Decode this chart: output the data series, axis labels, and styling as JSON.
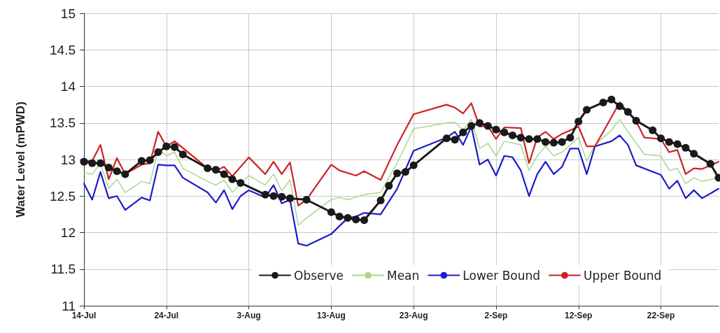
{
  "chart_data": {
    "type": "line",
    "ylabel": "Water Level (mPWD)",
    "xlim": [
      "--07-14",
      "--09-29"
    ],
    "ylim": [
      11,
      15
    ],
    "yticks": [
      11,
      11.5,
      12,
      12.5,
      13,
      13.5,
      14,
      14.5,
      15
    ],
    "xticks": [
      {
        "value": "--07-14",
        "label": "14-Jul"
      },
      {
        "value": "--07-24",
        "label": "24-Jul"
      },
      {
        "value": "--08-03",
        "label": "3-Aug"
      },
      {
        "value": "--08-13",
        "label": "13-Aug"
      },
      {
        "value": "--08-23",
        "label": "23-Aug"
      },
      {
        "value": "--09-02",
        "label": "2-Sep"
      },
      {
        "value": "--09-12",
        "label": "12-Sep"
      },
      {
        "value": "--09-22",
        "label": "22-Sep"
      }
    ],
    "grid": true,
    "legend": "bottom",
    "line_style": "solid",
    "series": [
      {
        "name": "Observe",
        "color": "#1a1a1a",
        "marker": "circle",
        "x": [
          "--07-14",
          "--07-15",
          "--07-16",
          "--07-17",
          "--07-18",
          "--07-19",
          "--07-21",
          "--07-22",
          "--07-23",
          "--07-24",
          "--07-25",
          "--07-26",
          "--07-29",
          "--07-30",
          "--07-31",
          "--08-01",
          "--08-02",
          "--08-05",
          "--08-06",
          "--08-07",
          "--08-08",
          "--08-10",
          "--08-13",
          "--08-14",
          "--08-15",
          "--08-16",
          "--08-17",
          "--08-19",
          "--08-20",
          "--08-21",
          "--08-22",
          "--08-23",
          "--08-27",
          "--08-28",
          "--08-29",
          "--08-30",
          "--08-31",
          "--09-01",
          "--09-02",
          "--09-03",
          "--09-04",
          "--09-05",
          "--09-06",
          "--09-07",
          "--09-08",
          "--09-09",
          "--09-10",
          "--09-11",
          "--09-12",
          "--09-13",
          "--09-15",
          "--09-16",
          "--09-17",
          "--09-18",
          "--09-19",
          "--09-21",
          "--09-22",
          "--09-23",
          "--09-24",
          "--09-25",
          "--09-26",
          "--09-28",
          "--09-29"
        ],
        "values": [
          12.97,
          12.95,
          12.95,
          12.89,
          12.84,
          12.8,
          12.98,
          12.99,
          13.1,
          13.18,
          13.17,
          13.07,
          12.88,
          12.86,
          12.8,
          12.73,
          12.68,
          12.52,
          12.5,
          12.49,
          12.47,
          12.45,
          12.28,
          12.22,
          12.2,
          12.18,
          12.17,
          12.44,
          12.64,
          12.81,
          12.83,
          12.92,
          13.29,
          13.27,
          13.37,
          13.46,
          13.5,
          13.46,
          13.41,
          13.37,
          13.33,
          13.3,
          13.28,
          13.28,
          13.24,
          13.23,
          13.24,
          13.3,
          13.52,
          13.68,
          13.78,
          13.82,
          13.73,
          13.65,
          13.53,
          13.4,
          13.29,
          13.24,
          13.21,
          13.16,
          13.08,
          12.94,
          12.75
        ]
      },
      {
        "name": "Mean",
        "color": "#a8d890",
        "marker": "none",
        "x": [
          "--07-14",
          "--07-15",
          "--07-16",
          "--07-17",
          "--07-18",
          "--07-19",
          "--07-21",
          "--07-22",
          "--07-23",
          "--07-24",
          "--07-25",
          "--07-26",
          "--07-29",
          "--07-30",
          "--07-31",
          "--08-01",
          "--08-03",
          "--08-05",
          "--08-06",
          "--08-07",
          "--08-08",
          "--08-09",
          "--08-10",
          "--08-13",
          "--08-14",
          "--08-15",
          "--08-17",
          "--08-19",
          "--08-21",
          "--08-23",
          "--08-27",
          "--08-28",
          "--08-29",
          "--08-30",
          "--08-31",
          "--09-01",
          "--09-02",
          "--09-03",
          "--09-05",
          "--09-06",
          "--09-07",
          "--09-08",
          "--09-09",
          "--09-10",
          "--09-12",
          "--09-13",
          "--09-14",
          "--09-16",
          "--09-17",
          "--09-18",
          "--09-20",
          "--09-22",
          "--09-23",
          "--09-24",
          "--09-25",
          "--09-26",
          "--09-27",
          "--09-29"
        ],
        "values": [
          12.82,
          12.8,
          12.95,
          12.6,
          12.73,
          12.55,
          12.7,
          12.67,
          13.15,
          13.05,
          13.1,
          12.88,
          12.7,
          12.65,
          12.72,
          12.55,
          12.78,
          12.65,
          12.8,
          12.57,
          12.72,
          12.1,
          12.2,
          12.45,
          12.48,
          12.45,
          12.52,
          12.55,
          12.95,
          13.42,
          13.5,
          13.51,
          13.4,
          13.55,
          13.15,
          13.22,
          13.05,
          13.25,
          13.2,
          12.85,
          13.05,
          13.18,
          13.05,
          13.1,
          13.3,
          12.98,
          13.2,
          13.4,
          13.55,
          13.38,
          13.07,
          13.05,
          12.85,
          12.88,
          12.67,
          12.75,
          12.7,
          12.75
        ]
      },
      {
        "name": "Lower Bound",
        "color": "#1c1ccc",
        "marker": "none",
        "x": [
          "--07-14",
          "--07-15",
          "--07-16",
          "--07-17",
          "--07-18",
          "--07-19",
          "--07-21",
          "--07-22",
          "--07-23",
          "--07-24",
          "--07-25",
          "--07-26",
          "--07-29",
          "--07-30",
          "--07-31",
          "--08-01",
          "--08-02",
          "--08-03",
          "--08-05",
          "--08-06",
          "--08-07",
          "--08-08",
          "--08-09",
          "--08-10",
          "--08-13",
          "--08-15",
          "--08-16",
          "--08-17",
          "--08-19",
          "--08-21",
          "--08-23",
          "--08-27",
          "--08-28",
          "--08-29",
          "--08-30",
          "--08-31",
          "--09-01",
          "--09-02",
          "--09-03",
          "--09-04",
          "--09-05",
          "--09-06",
          "--09-07",
          "--09-08",
          "--09-09",
          "--09-10",
          "--09-11",
          "--09-12",
          "--09-13",
          "--09-14",
          "--09-16",
          "--09-17",
          "--09-18",
          "--09-19",
          "--09-22",
          "--09-23",
          "--09-24",
          "--09-25",
          "--09-26",
          "--09-27",
          "--09-29"
        ],
        "values": [
          12.67,
          12.45,
          12.83,
          12.47,
          12.5,
          12.31,
          12.48,
          12.44,
          12.93,
          12.92,
          12.92,
          12.75,
          12.55,
          12.41,
          12.58,
          12.32,
          12.5,
          12.58,
          12.48,
          12.65,
          12.4,
          12.45,
          11.85,
          11.82,
          11.98,
          12.2,
          12.22,
          12.27,
          12.25,
          12.6,
          13.12,
          13.3,
          13.38,
          13.2,
          13.45,
          12.93,
          13.0,
          12.78,
          13.05,
          13.03,
          12.85,
          12.5,
          12.8,
          12.97,
          12.8,
          12.9,
          13.15,
          13.15,
          12.8,
          13.18,
          13.25,
          13.33,
          13.2,
          12.92,
          12.79,
          12.6,
          12.71,
          12.47,
          12.58,
          12.47,
          12.6
        ]
      },
      {
        "name": "Upper Bound",
        "color": "#cc2222",
        "marker": "none",
        "x": [
          "--07-14",
          "--07-15",
          "--07-16",
          "--07-17",
          "--07-18",
          "--07-19",
          "--07-21",
          "--07-22",
          "--07-23",
          "--07-24",
          "--07-25",
          "--07-29",
          "--07-30",
          "--07-31",
          "--08-01",
          "--08-03",
          "--08-05",
          "--08-06",
          "--08-07",
          "--08-08",
          "--08-09",
          "--08-10",
          "--08-13",
          "--08-14",
          "--08-16",
          "--08-17",
          "--08-19",
          "--08-21",
          "--08-23",
          "--08-27",
          "--08-28",
          "--08-29",
          "--08-30",
          "--08-31",
          "--09-01",
          "--09-02",
          "--09-03",
          "--09-05",
          "--09-06",
          "--09-07",
          "--09-08",
          "--09-09",
          "--09-10",
          "--09-12",
          "--09-13",
          "--09-14",
          "--09-17",
          "--09-19",
          "--09-20",
          "--09-22",
          "--09-23",
          "--09-24",
          "--09-25",
          "--09-26",
          "--09-27",
          "--09-29"
        ],
        "values": [
          12.98,
          12.98,
          13.2,
          12.73,
          13.02,
          12.8,
          12.93,
          12.95,
          13.38,
          13.18,
          13.25,
          12.88,
          12.85,
          12.9,
          12.77,
          13.03,
          12.8,
          12.97,
          12.8,
          12.96,
          12.37,
          12.45,
          12.93,
          12.85,
          12.78,
          12.84,
          12.72,
          13.2,
          13.62,
          13.75,
          13.71,
          13.63,
          13.77,
          13.45,
          13.46,
          13.28,
          13.44,
          13.43,
          12.95,
          13.3,
          13.38,
          13.28,
          13.35,
          13.45,
          13.18,
          13.18,
          13.78,
          13.52,
          13.3,
          13.28,
          13.1,
          13.13,
          12.8,
          12.88,
          12.87,
          12.97
        ]
      }
    ]
  }
}
